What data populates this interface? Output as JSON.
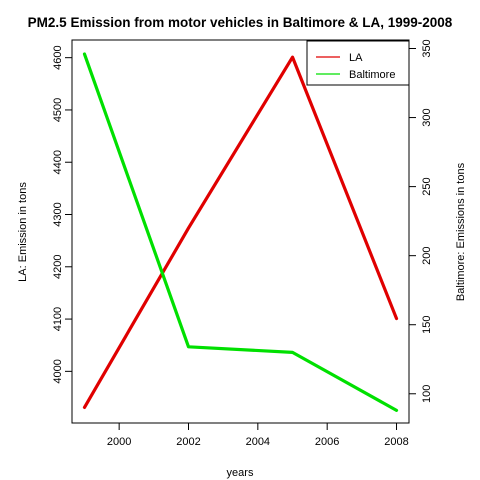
{
  "chart_data": {
    "type": "line",
    "title": "PM2.5 Emission from motor vehicles in Baltimore & LA, 1999-2008",
    "xlabel": "years",
    "ylabel_left": "LA: Emission in tons",
    "ylabel_right": "Baltimore: Emissions in tons",
    "x": [
      1999,
      2002,
      2005,
      2008
    ],
    "xlim": [
      1998.64,
      2008.36
    ],
    "x_ticks": [
      2000,
      2002,
      2004,
      2006,
      2008
    ],
    "ylim_left": [
      3901.2,
      4633.8
    ],
    "ylim_right": [
      78.84,
      356.16
    ],
    "y_ticks_left": [
      4000,
      4100,
      4200,
      4300,
      4400,
      4500,
      4600
    ],
    "y_ticks_right": [
      100,
      150,
      200,
      250,
      300,
      350
    ],
    "grid": false,
    "legend_position": "top-right",
    "series": [
      {
        "name": "LA",
        "axis": "left",
        "color": "#e00000",
        "values": [
          3931,
          4274,
          4601,
          4101
        ]
      },
      {
        "name": "Baltimore",
        "axis": "right",
        "color": "#00e000",
        "values": [
          346,
          134,
          130,
          88
        ]
      }
    ]
  }
}
